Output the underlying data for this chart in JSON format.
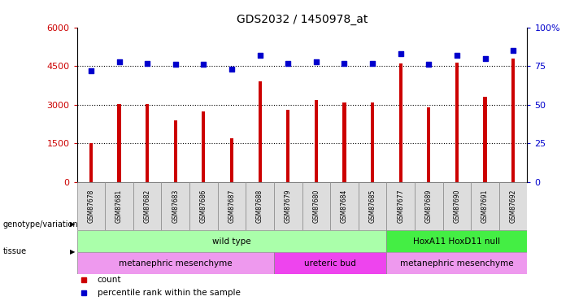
{
  "title": "GDS2032 / 1450978_at",
  "samples": [
    "GSM87678",
    "GSM87681",
    "GSM87682",
    "GSM87683",
    "GSM87686",
    "GSM87687",
    "GSM87688",
    "GSM87679",
    "GSM87680",
    "GSM87684",
    "GSM87685",
    "GSM87677",
    "GSM87689",
    "GSM87690",
    "GSM87691",
    "GSM87692"
  ],
  "counts": [
    1500,
    3030,
    3020,
    2400,
    2750,
    1700,
    3900,
    2800,
    3200,
    3100,
    3100,
    4600,
    2900,
    4650,
    3300,
    4800
  ],
  "percentile": [
    72,
    78,
    77,
    76,
    76,
    73,
    82,
    77,
    78,
    77,
    77,
    83,
    76,
    82,
    80,
    85
  ],
  "ylim_left": [
    0,
    6000
  ],
  "ylim_right": [
    0,
    100
  ],
  "yticks_left": [
    0,
    1500,
    3000,
    4500,
    6000
  ],
  "ytick_labels_left": [
    "0",
    "1500",
    "3000",
    "4500",
    "6000"
  ],
  "yticks_right": [
    0,
    25,
    50,
    75,
    100
  ],
  "ytick_labels_right": [
    "0",
    "25",
    "50",
    "75",
    "100%"
  ],
  "bar_color": "#cc0000",
  "dot_color": "#0000cc",
  "bg_color": "#ffffff",
  "genotype_groups": [
    {
      "label": "wild type",
      "start": 0,
      "end": 11,
      "color": "#aaffaa"
    },
    {
      "label": "HoxA11 HoxD11 null",
      "start": 11,
      "end": 16,
      "color": "#44ee44"
    }
  ],
  "tissue_groups": [
    {
      "label": "metanephric mesenchyme",
      "start": 0,
      "end": 7,
      "color": "#ee99ee"
    },
    {
      "label": "ureteric bud",
      "start": 7,
      "end": 11,
      "color": "#ee44ee"
    },
    {
      "label": "metanephric mesenchyme",
      "start": 11,
      "end": 16,
      "color": "#ee99ee"
    }
  ],
  "legend_count_color": "#cc0000",
  "legend_dot_color": "#0000cc",
  "bar_width": 0.12,
  "xlabel_color": "#cc0000",
  "ylabel_right_color": "#0000cc"
}
